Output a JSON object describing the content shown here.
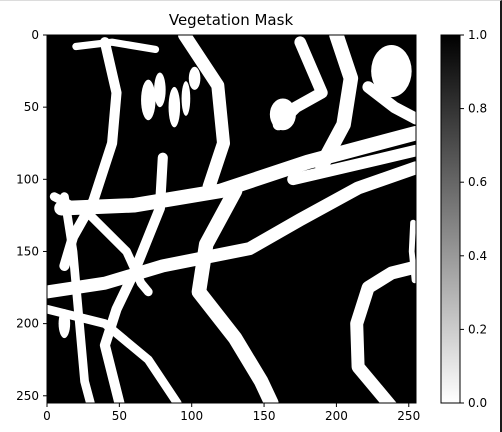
{
  "chart_data": {
    "type": "heatmap",
    "title": "Vegetation Mask",
    "xlabel": "",
    "ylabel": "",
    "xlim": [
      0,
      255
    ],
    "ylim": [
      255,
      0
    ],
    "x_ticks": [
      0,
      50,
      100,
      150,
      200,
      250
    ],
    "y_ticks": [
      0,
      50,
      100,
      150,
      200,
      250
    ],
    "colormap": "gray_r",
    "value_range": [
      0.0,
      1.0
    ],
    "colorbar": {
      "ticks": [
        0.0,
        0.2,
        0.4,
        0.6,
        0.8,
        1.0
      ],
      "tick_labels": [
        "0.0",
        "0.2",
        "0.4",
        "0.6",
        "0.8",
        "1.0"
      ]
    },
    "background_value": 1.0,
    "vegetation_value": 0.0,
    "mask_paths": [
      {
        "name": "diagonal-road-main",
        "width": 10,
        "points": [
          [
            10,
            120
          ],
          [
            60,
            118
          ],
          [
            120,
            108
          ],
          [
            180,
            88
          ],
          [
            255,
            68
          ]
        ]
      },
      {
        "name": "diagonal-road-upper",
        "width": 8,
        "points": [
          [
            170,
            100
          ],
          [
            230,
            86
          ],
          [
            255,
            80
          ]
        ]
      },
      {
        "name": "lower-diagonal",
        "width": 9,
        "points": [
          [
            0,
            178
          ],
          [
            40,
            172
          ],
          [
            80,
            160
          ],
          [
            140,
            148
          ],
          [
            175,
            128
          ],
          [
            215,
            106
          ],
          [
            255,
            92
          ]
        ]
      },
      {
        "name": "left-curve-from-top",
        "width": 7,
        "points": [
          [
            40,
            5
          ],
          [
            48,
            40
          ],
          [
            45,
            75
          ],
          [
            32,
            115
          ],
          [
            18,
            140
          ],
          [
            12,
            160
          ]
        ]
      },
      {
        "name": "left-vertical-branch",
        "width": 6,
        "points": [
          [
            12,
            112
          ],
          [
            18,
            150
          ],
          [
            22,
            195
          ],
          [
            26,
            240
          ],
          [
            30,
            255
          ]
        ]
      },
      {
        "name": "upper-center-curve",
        "width": 9,
        "points": [
          [
            95,
            0
          ],
          [
            118,
            35
          ],
          [
            122,
            75
          ],
          [
            112,
            105
          ]
        ]
      },
      {
        "name": "center-drop-to-bottom",
        "width": 10,
        "points": [
          [
            130,
            108
          ],
          [
            110,
            145
          ],
          [
            105,
            178
          ],
          [
            130,
            210
          ],
          [
            148,
            240
          ],
          [
            155,
            255
          ]
        ]
      },
      {
        "name": "mid-left-branch",
        "width": 7,
        "points": [
          [
            80,
            85
          ],
          [
            78,
            120
          ],
          [
            70,
            140
          ],
          [
            60,
            165
          ],
          [
            48,
            190
          ],
          [
            40,
            215
          ],
          [
            50,
            255
          ]
        ]
      },
      {
        "name": "cross-branch",
        "width": 6,
        "points": [
          [
            5,
            112
          ],
          [
            30,
            125
          ],
          [
            55,
            150
          ],
          [
            65,
            172
          ],
          [
            70,
            178
          ]
        ]
      },
      {
        "name": "left-lower-diagonal",
        "width": 6,
        "points": [
          [
            0,
            190
          ],
          [
            40,
            200
          ],
          [
            70,
            225
          ],
          [
            90,
            255
          ]
        ]
      },
      {
        "name": "center-right-curve",
        "width": 10,
        "points": [
          [
            200,
            0
          ],
          [
            210,
            30
          ],
          [
            205,
            62
          ],
          [
            190,
            90
          ]
        ]
      },
      {
        "name": "right-ring-curve",
        "width": 9,
        "points": [
          [
            240,
            260
          ],
          [
            215,
            230
          ],
          [
            214,
            200
          ],
          [
            222,
            175
          ],
          [
            238,
            165
          ],
          [
            258,
            160
          ]
        ]
      },
      {
        "name": "top-right-spur",
        "width": 8,
        "points": [
          [
            222,
            36
          ],
          [
            240,
            50
          ],
          [
            255,
            58
          ]
        ]
      },
      {
        "name": "top-right-blob-arm",
        "width": 8,
        "points": [
          [
            175,
            5
          ],
          [
            190,
            40
          ],
          [
            172,
            50
          ],
          [
            160,
            62
          ]
        ]
      },
      {
        "name": "right-edge-stub",
        "width": 4,
        "points": [
          [
            253,
            130
          ],
          [
            252,
            150
          ],
          [
            254,
            170
          ]
        ]
      },
      {
        "name": "top-left-strip",
        "width": 5,
        "points": [
          [
            20,
            8
          ],
          [
            45,
            5
          ],
          [
            75,
            10
          ]
        ]
      }
    ],
    "mask_blobs": [
      {
        "name": "top-right-blob",
        "cx": 238,
        "cy": 25,
        "rx": 14,
        "ry": 18
      },
      {
        "name": "upper-blob",
        "cx": 163,
        "cy": 55,
        "rx": 9,
        "ry": 11
      },
      {
        "name": "field-block-1",
        "cx": 70,
        "cy": 45,
        "rx": 5,
        "ry": 14
      },
      {
        "name": "field-block-2",
        "cx": 78,
        "cy": 38,
        "rx": 4,
        "ry": 12
      },
      {
        "name": "field-block-3",
        "cx": 88,
        "cy": 50,
        "rx": 4,
        "ry": 14
      },
      {
        "name": "field-block-4",
        "cx": 96,
        "cy": 44,
        "rx": 3,
        "ry": 12
      },
      {
        "name": "field-block-5",
        "cx": 102,
        "cy": 30,
        "rx": 4,
        "ry": 8
      },
      {
        "name": "left-patch",
        "cx": 12,
        "cy": 200,
        "rx": 4,
        "ry": 10
      }
    ]
  }
}
